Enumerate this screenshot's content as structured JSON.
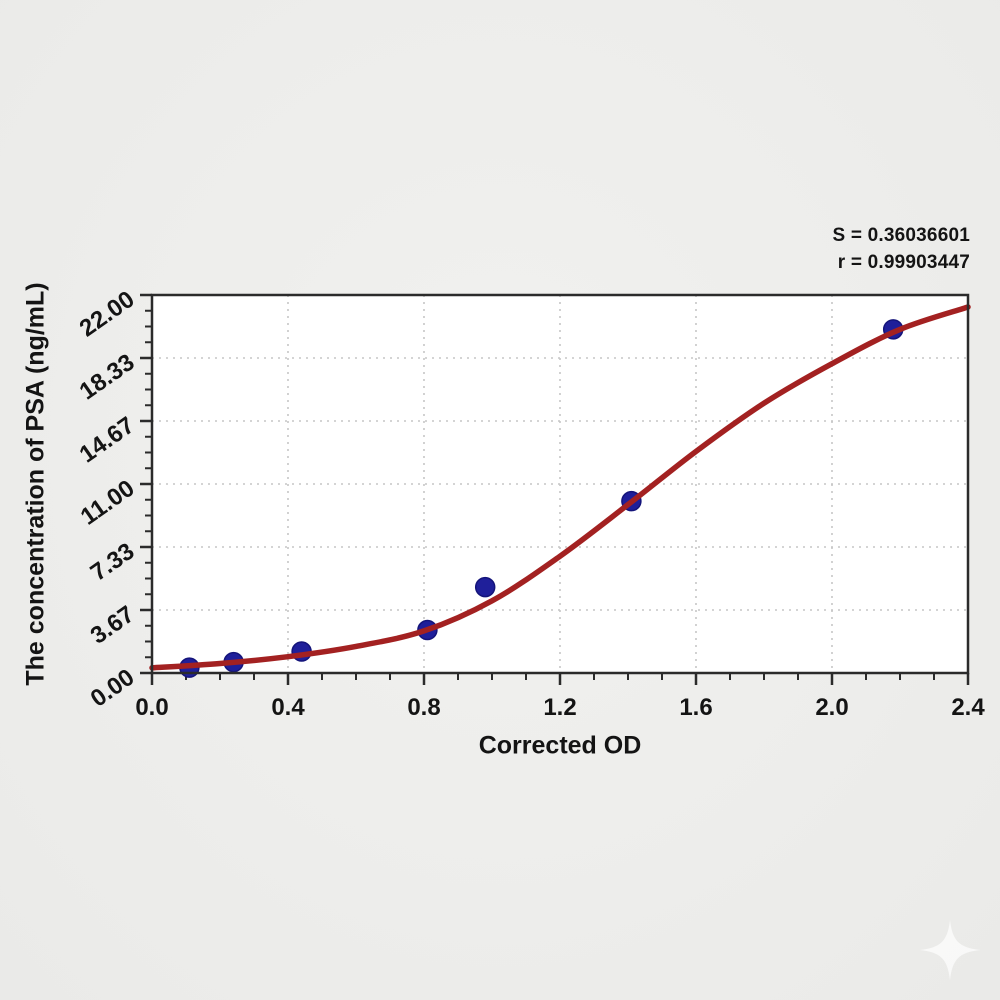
{
  "stats": {
    "line1": "S = 0.36036601",
    "line2": "r = 0.99903447"
  },
  "watermark_icon": "sparkle",
  "chart_data": {
    "type": "scatter",
    "title": "",
    "xlabel": "Corrected OD",
    "ylabel": "The concentration of PSA (ng/mL)",
    "xlim": [
      0,
      2.4
    ],
    "ylim": [
      0,
      22
    ],
    "x_tick_labels": [
      "0.0",
      "0.4",
      "0.8",
      "1.2",
      "1.6",
      "2.0",
      "2.4"
    ],
    "y_tick_labels": [
      "0.00",
      "3.67",
      "7.33",
      "11.00",
      "14.67",
      "18.33",
      "22.00"
    ],
    "minor_divisions_per_major": 4,
    "grid": {
      "style": "dotted",
      "at": "major-ticks"
    },
    "legend_position": "none",
    "annotations": {
      "S": "0.36036601",
      "r": "0.99903447"
    },
    "series": [
      {
        "name": "standard points",
        "type": "scatter",
        "x": [
          0.11,
          0.24,
          0.44,
          0.81,
          0.98,
          1.41,
          2.18
        ],
        "y": [
          0.31,
          0.63,
          1.25,
          2.5,
          5,
          10,
          20
        ]
      },
      {
        "name": "fitted standard curve",
        "type": "line",
        "x": [
          0.0,
          0.2,
          0.4,
          0.6,
          0.8,
          1.0,
          1.2,
          1.4,
          1.6,
          1.8,
          2.0,
          2.2,
          2.4
        ],
        "y": [
          0.3,
          0.55,
          0.95,
          1.55,
          2.45,
          4.2,
          6.8,
          9.8,
          12.9,
          15.7,
          18.0,
          20.0,
          21.3
        ]
      }
    ],
    "colors": {
      "curve": "#a32121",
      "points": "#1f1f9a",
      "points_edge": "#14147a",
      "grid": "#c6c6c6",
      "axis": "#2b2b2b",
      "tick_text": "#141414",
      "plot_bg": "#ffffff",
      "page_bg": "#ededeb"
    }
  }
}
